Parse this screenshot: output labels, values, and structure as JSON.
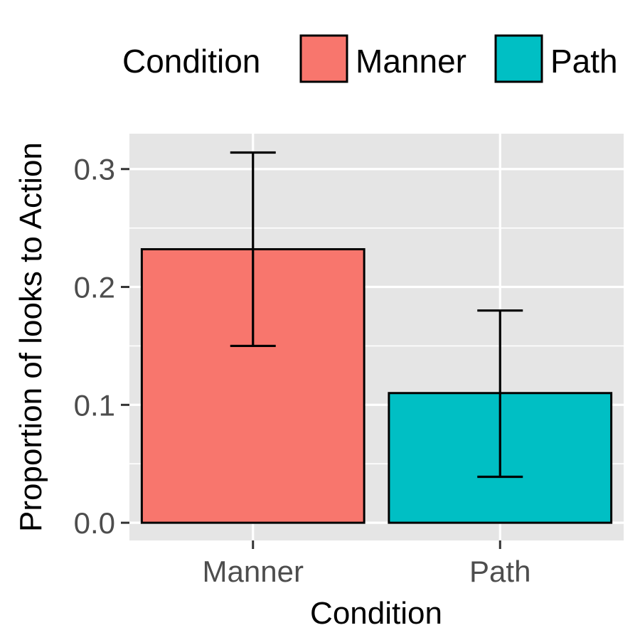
{
  "chart_data": {
    "type": "bar",
    "categories": [
      "Manner",
      "Path"
    ],
    "series": [
      {
        "name": "Condition",
        "values": [
          0.232,
          0.11
        ],
        "error_low": [
          0.15,
          0.039
        ],
        "error_high": [
          0.314,
          0.18
        ]
      }
    ],
    "colors": [
      "#F8766D",
      "#00BFC4"
    ],
    "xlabel": "Condition",
    "ylabel": "Proportion of looks to Action",
    "ylim": [
      -0.015,
      0.33
    ],
    "yticks": [
      0.0,
      0.1,
      0.2,
      0.3
    ],
    "ytick_labels": [
      "0.0",
      "0.1",
      "0.2",
      "0.3"
    ],
    "grid": true,
    "legend": {
      "title": "Condition",
      "position": "top",
      "entries": [
        "Manner",
        "Path"
      ]
    }
  }
}
